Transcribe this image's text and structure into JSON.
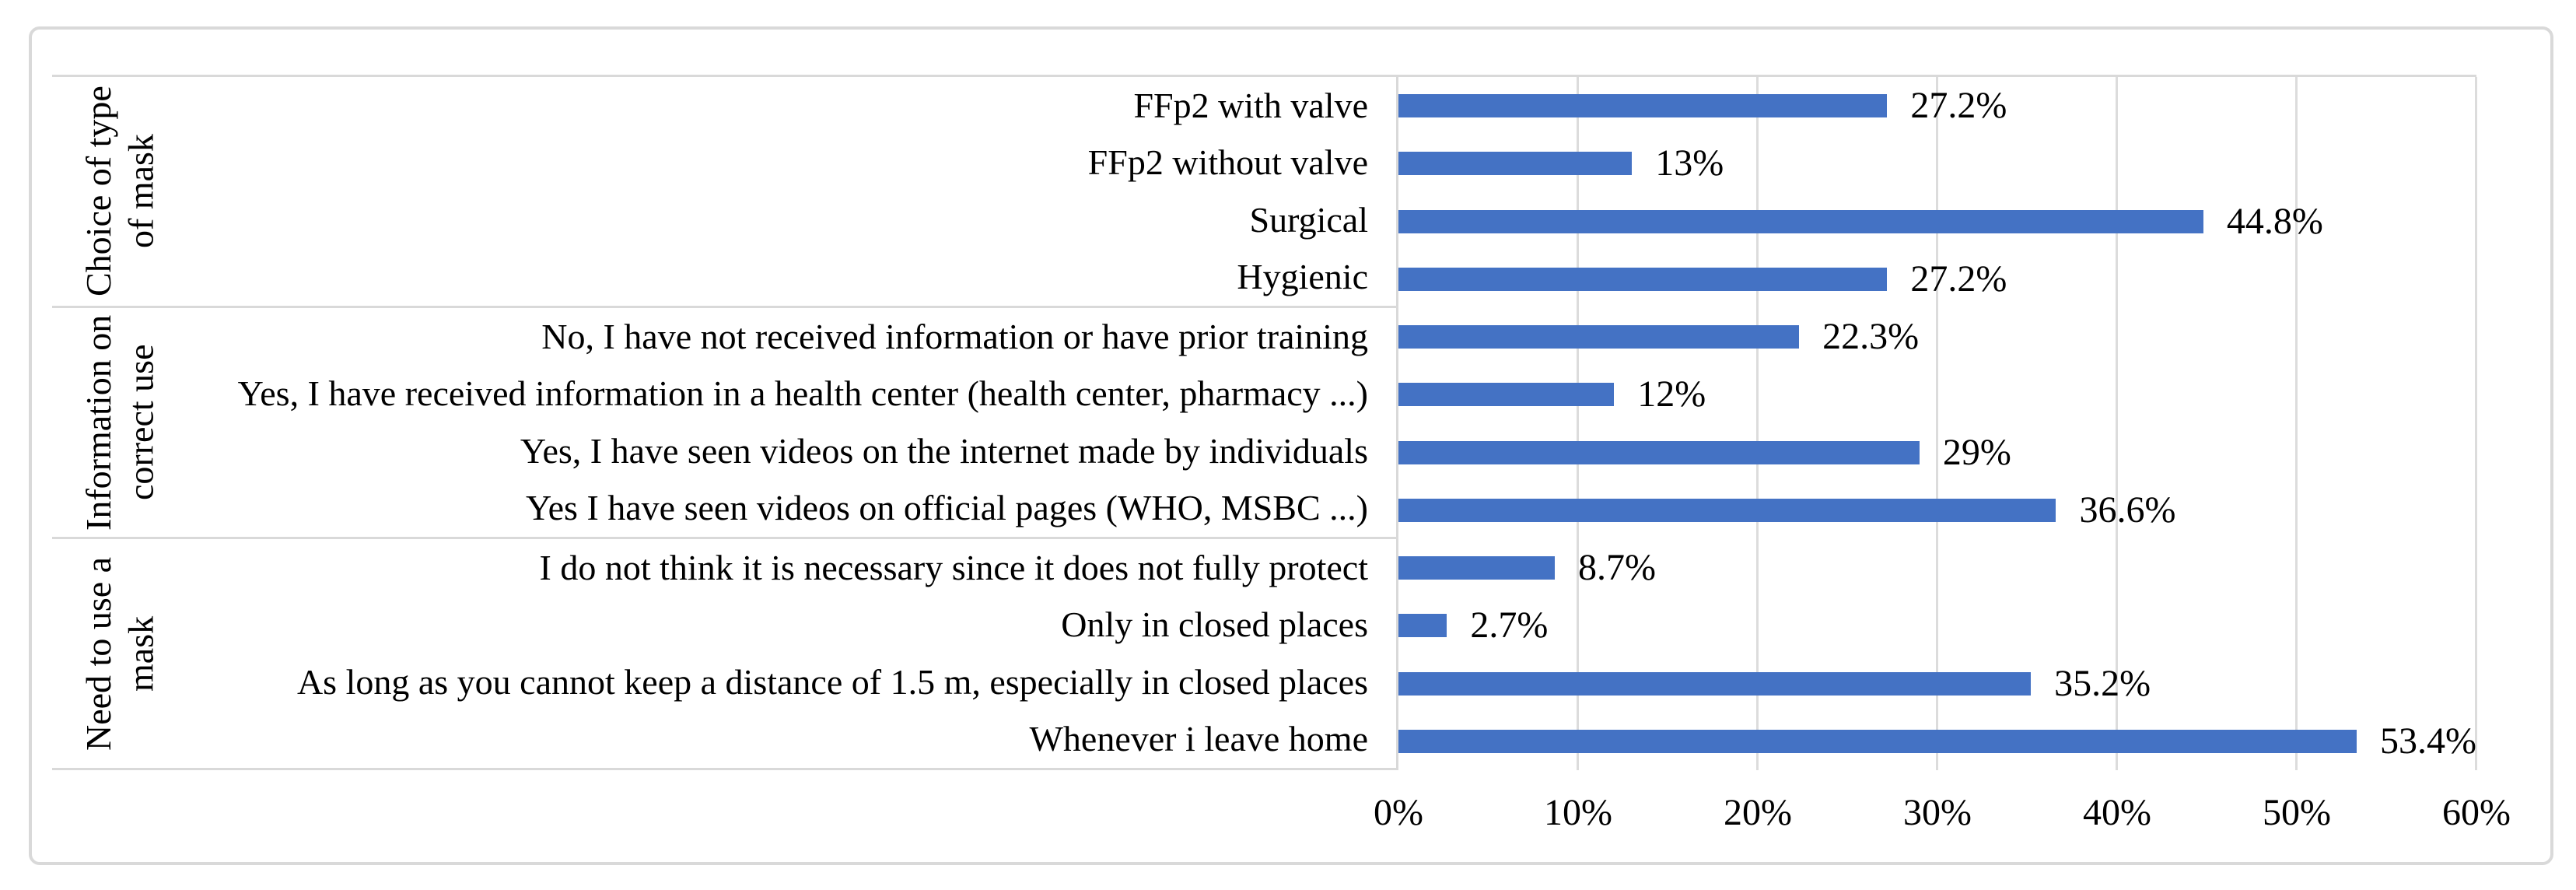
{
  "figure": {
    "background_color": "#FFFFFF",
    "frame_border_color": "#D9D9D9",
    "gridline_color": "#DCDCDC",
    "bar_color": "#4472C4",
    "text_color": "#000000"
  },
  "chart_data": {
    "type": "bar",
    "orientation": "horizontal",
    "title": "",
    "xlabel": "",
    "ylabel": "",
    "xlim": [
      0,
      60
    ],
    "x_tick_step": 10,
    "x_tick_labels": [
      "0%",
      "10%",
      "20%",
      "30%",
      "40%",
      "50%",
      "60%"
    ],
    "grid": true,
    "legend": false,
    "value_suffix": "%",
    "groups": [
      {
        "label": "Choice of type of mask",
        "label_lines": "Choice of type\nof mask",
        "items": [
          {
            "category": "FFp2 with valve",
            "value": 27.2,
            "value_label": "27.2%"
          },
          {
            "category": "FFp2 without valve",
            "value": 13,
            "value_label": "13%"
          },
          {
            "category": "Surgical",
            "value": 44.8,
            "value_label": "44.8%"
          },
          {
            "category": "Hygienic",
            "value": 27.2,
            "value_label": "27.2%"
          }
        ]
      },
      {
        "label": "Information on correct use",
        "label_lines": "Information on\ncorrect use",
        "items": [
          {
            "category": "No, I have not received information or have prior training",
            "value": 22.3,
            "value_label": "22.3%"
          },
          {
            "category": "Yes, I have received information in a health center (health center, pharmacy ...)",
            "value": 12,
            "value_label": "12%"
          },
          {
            "category": "Yes, I have seen videos on the internet made by individuals",
            "value": 29,
            "value_label": "29%"
          },
          {
            "category": "Yes I have seen videos on official pages (WHO, MSBC ...)",
            "value": 36.6,
            "value_label": "36.6%"
          }
        ]
      },
      {
        "label": "Need to use a mask",
        "label_lines": "Need to use a\nmask",
        "items": [
          {
            "category": "I do not think it is necessary since it does not fully protect",
            "value": 8.7,
            "value_label": "8.7%"
          },
          {
            "category": "Only in closed places",
            "value": 2.7,
            "value_label": "2.7%"
          },
          {
            "category": "As long as you cannot keep a distance of 1.5 m, especially in closed places",
            "value": 35.2,
            "value_label": "35.2%"
          },
          {
            "category": "Whenever i leave home",
            "value": 53.4,
            "value_label": "53.4%"
          }
        ]
      }
    ]
  }
}
